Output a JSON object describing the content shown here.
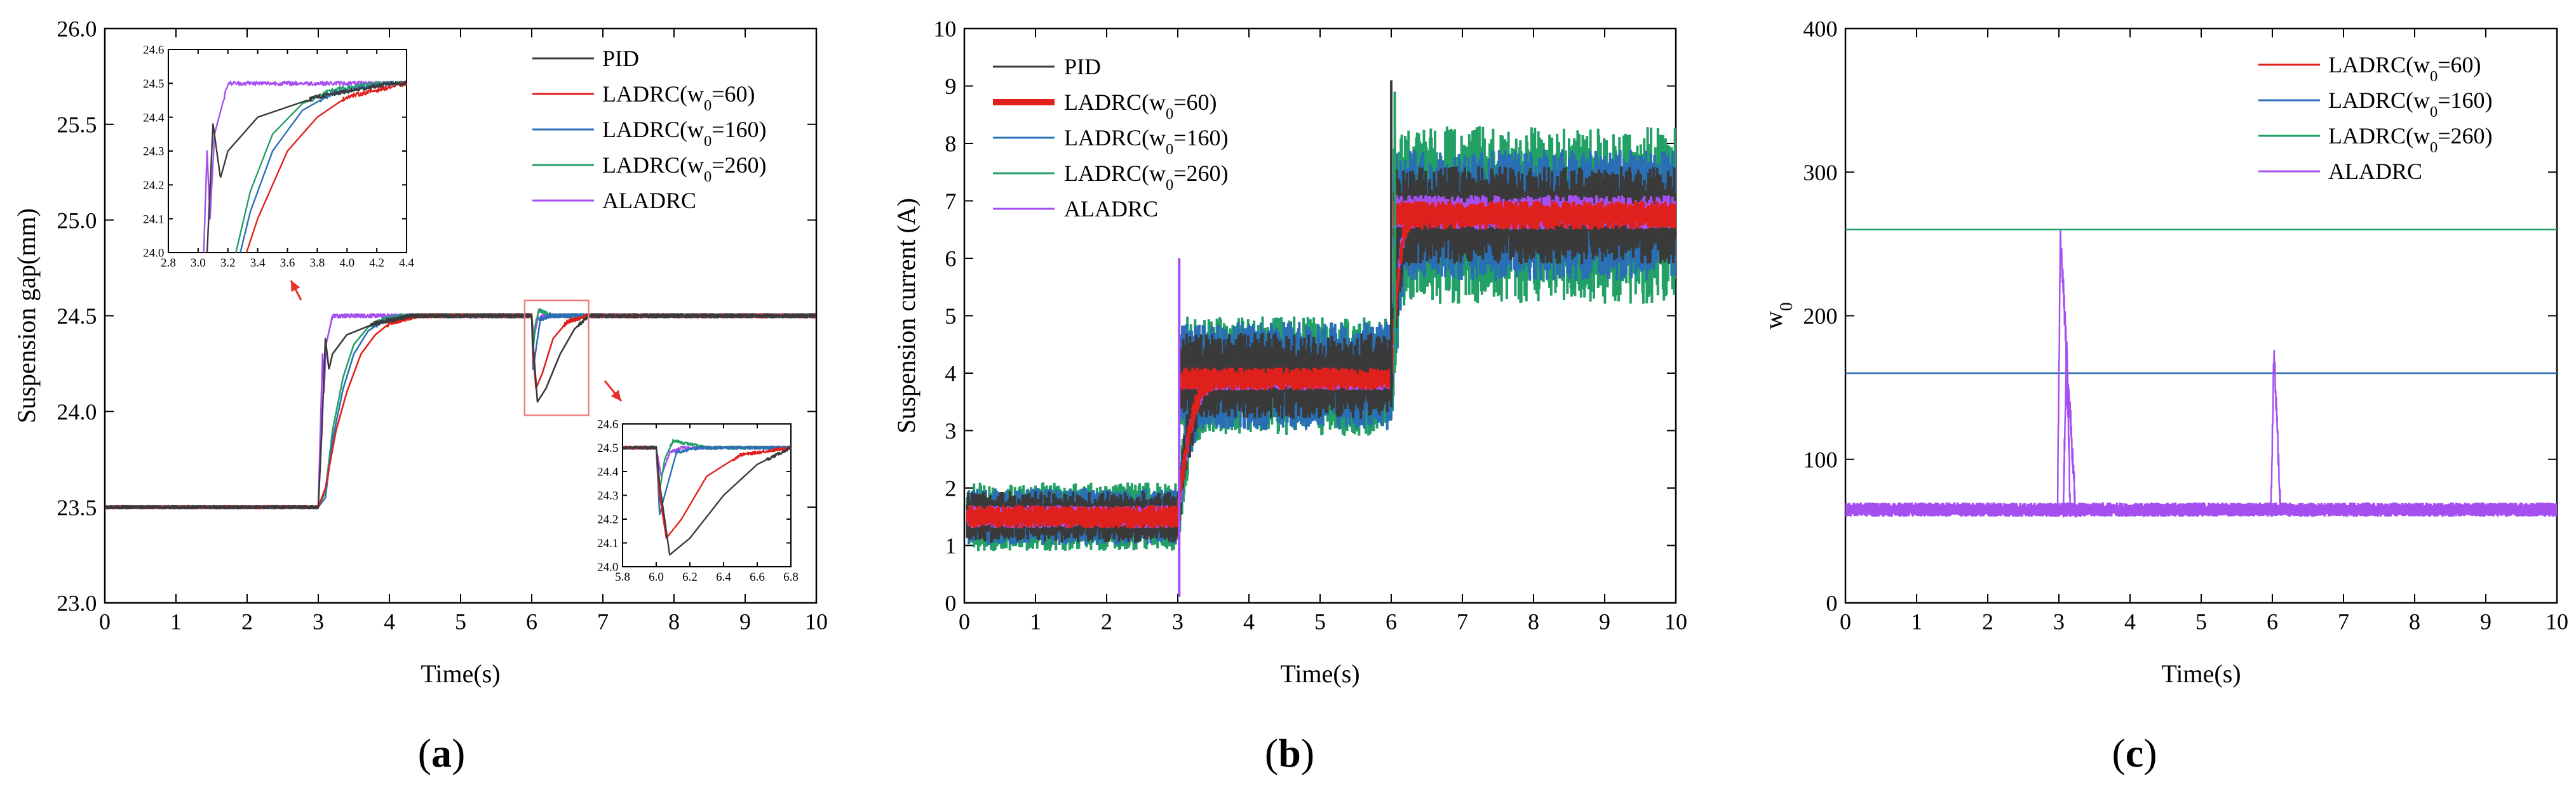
{
  "colors": {
    "PID": "#3a3a3a",
    "LADRC60": "#e0201c",
    "LADRC160": "#2a6fb5",
    "LADRC260": "#22a065",
    "ALADRC": "#a64ff0",
    "zoom_box": "#f08080",
    "arrow": "#e8302a"
  },
  "captions": [
    {
      "open": "(",
      "letter": "a",
      "close": ")"
    },
    {
      "open": "(",
      "letter": "b",
      "close": ")"
    },
    {
      "open": "(",
      "letter": "c",
      "close": ")"
    }
  ],
  "chart_data": [
    {
      "type": "line",
      "panel": "a",
      "xlabel": "Time(s)",
      "ylabel": "Suspension gap(mm)",
      "xlim": [
        0,
        10
      ],
      "ylim": [
        23.0,
        26.0
      ],
      "xticks": [
        "0",
        "1",
        "2",
        "3",
        "4",
        "5",
        "6",
        "7",
        "8",
        "9",
        "10"
      ],
      "yticks": [
        "23.0",
        "23.5",
        "24.0",
        "24.5",
        "25.0",
        "25.5",
        "26.0"
      ],
      "legend": {
        "placement": "top-right",
        "entries": [
          "PID",
          "LADRC(w0=60)",
          "LADRC(w0=160)",
          "LADRC(w0=260)",
          "ALADRC"
        ]
      },
      "series": [
        {
          "name": "PID",
          "key": "PID",
          "points": [
            [
              0,
              23.5
            ],
            [
              3.0,
              23.5
            ],
            [
              3.05,
              23.9
            ],
            [
              3.1,
              24.38
            ],
            [
              3.15,
              24.22
            ],
            [
              3.2,
              24.3
            ],
            [
              3.4,
              24.4
            ],
            [
              3.8,
              24.46
            ],
            [
              4.3,
              24.5
            ],
            [
              6.0,
              24.5
            ],
            [
              6.02,
              24.35
            ],
            [
              6.08,
              24.05
            ],
            [
              6.2,
              24.12
            ],
            [
              6.4,
              24.3
            ],
            [
              6.6,
              24.43
            ],
            [
              6.8,
              24.5
            ],
            [
              10,
              24.5
            ]
          ]
        },
        {
          "name": "LADRC(w0=60)",
          "key": "LADRC60",
          "points": [
            [
              0,
              23.5
            ],
            [
              3.0,
              23.5
            ],
            [
              3.1,
              23.6
            ],
            [
              3.25,
              23.9
            ],
            [
              3.4,
              24.1
            ],
            [
              3.6,
              24.3
            ],
            [
              3.8,
              24.4
            ],
            [
              4.0,
              24.46
            ],
            [
              4.4,
              24.5
            ],
            [
              6.0,
              24.5
            ],
            [
              6.02,
              24.3
            ],
            [
              6.06,
              24.12
            ],
            [
              6.15,
              24.2
            ],
            [
              6.3,
              24.38
            ],
            [
              6.5,
              24.47
            ],
            [
              6.8,
              24.5
            ],
            [
              10,
              24.5
            ]
          ]
        },
        {
          "name": "LADRC(w0=160)",
          "key": "LADRC160",
          "points": [
            [
              0,
              23.5
            ],
            [
              3.0,
              23.5
            ],
            [
              3.1,
              23.55
            ],
            [
              3.2,
              23.85
            ],
            [
              3.35,
              24.12
            ],
            [
              3.5,
              24.3
            ],
            [
              3.7,
              24.42
            ],
            [
              3.9,
              24.47
            ],
            [
              4.3,
              24.5
            ],
            [
              6.0,
              24.5
            ],
            [
              6.02,
              24.22
            ],
            [
              6.05,
              24.3
            ],
            [
              6.12,
              24.48
            ],
            [
              6.25,
              24.5
            ],
            [
              10,
              24.5
            ]
          ]
        },
        {
          "name": "LADRC(w0=260)",
          "key": "LADRC260",
          "points": [
            [
              0,
              23.5
            ],
            [
              3.0,
              23.5
            ],
            [
              3.1,
              23.58
            ],
            [
              3.2,
              23.9
            ],
            [
              3.35,
              24.18
            ],
            [
              3.5,
              24.35
            ],
            [
              3.7,
              24.44
            ],
            [
              3.9,
              24.48
            ],
            [
              4.2,
              24.5
            ],
            [
              6.0,
              24.5
            ],
            [
              6.02,
              24.32
            ],
            [
              6.05,
              24.45
            ],
            [
              6.1,
              24.53
            ],
            [
              6.3,
              24.5
            ],
            [
              10,
              24.5
            ]
          ]
        },
        {
          "name": "ALADRC",
          "key": "ALADRC",
          "points": [
            [
              0,
              23.5
            ],
            [
              3.0,
              23.5
            ],
            [
              3.03,
              23.9
            ],
            [
              3.06,
              24.3
            ],
            [
              3.08,
              24.1
            ],
            [
              3.11,
              24.35
            ],
            [
              3.2,
              24.5
            ],
            [
              6.0,
              24.5
            ],
            [
              6.03,
              24.38
            ],
            [
              6.08,
              24.48
            ],
            [
              6.15,
              24.5
            ],
            [
              10,
              24.5
            ]
          ]
        }
      ],
      "noise_amplitude": 0.01,
      "insets": [
        {
          "position": "upper-left",
          "xlim": [
            2.8,
            4.4
          ],
          "ylim": [
            24.0,
            24.6
          ],
          "xticks": [
            "2.8",
            "3.0",
            "3.2",
            "3.4",
            "3.6",
            "3.8",
            "4.0",
            "4.2",
            "4.4"
          ],
          "yticks": [
            "24.0",
            "24.1",
            "24.2",
            "24.3",
            "24.4",
            "24.5",
            "24.6"
          ]
        },
        {
          "position": "lower-right",
          "xlim": [
            5.8,
            6.8
          ],
          "ylim": [
            24.0,
            24.6
          ],
          "xticks": [
            "5.8",
            "6.0",
            "6.2",
            "6.4",
            "6.6",
            "6.8"
          ],
          "yticks": [
            "24.0",
            "24.1",
            "24.2",
            "24.3",
            "24.4",
            "24.5",
            "24.6"
          ]
        }
      ],
      "zoom_region": {
        "x": [
          5.9,
          6.8
        ],
        "y": [
          23.98,
          24.58
        ]
      }
    },
    {
      "type": "line",
      "panel": "b",
      "xlabel": "Time(s)",
      "ylabel": "Suspension current (A)",
      "xlim": [
        0,
        10
      ],
      "ylim": [
        0,
        10
      ],
      "xticks": [
        "0",
        "1",
        "2",
        "3",
        "4",
        "5",
        "6",
        "7",
        "8",
        "9",
        "10"
      ],
      "yticks": [
        "0",
        "1",
        "2",
        "3",
        "4",
        "5",
        "6",
        "7",
        "8",
        "9",
        "10"
      ],
      "legend": {
        "placement": "top-left",
        "entries": [
          "PID",
          "LADRC(w0=60)",
          "LADRC(w0=160)",
          "LADRC(w0=260)",
          "ALADRC"
        ]
      },
      "bands": [
        {
          "name": "LADRC(w0=260)",
          "key": "LADRC260",
          "segments": [
            [
              0,
              3,
              0.9,
              2.1
            ],
            [
              3,
              6,
              2.9,
              5.0
            ],
            [
              6,
              10,
              5.2,
              8.3
            ]
          ]
        },
        {
          "name": "LADRC(w0=160)",
          "key": "LADRC160",
          "segments": [
            [
              0,
              3,
              1.0,
              2.0
            ],
            [
              3,
              6,
              3.0,
              4.9
            ],
            [
              6,
              10,
              5.6,
              7.9
            ]
          ]
        },
        {
          "name": "PID",
          "key": "PID",
          "segments": [
            [
              0,
              3,
              1.05,
              1.95
            ],
            [
              3,
              6,
              3.2,
              4.7
            ],
            [
              6,
              10,
              5.9,
              7.6
            ]
          ]
        },
        {
          "name": "ALADRC",
          "key": "ALADRC",
          "segments": [
            [
              0,
              3,
              1.3,
              1.7
            ],
            [
              3,
              6,
              3.7,
              4.0
            ],
            [
              6,
              10,
              6.5,
              7.1
            ]
          ]
        },
        {
          "name": "LADRC(w0=60)",
          "key": "LADRC60",
          "segments": [
            [
              0,
              3,
              1.3,
              1.7
            ],
            [
              3,
              6,
              3.7,
              4.1
            ],
            [
              6,
              10,
              6.5,
              7.0
            ]
          ]
        }
      ],
      "spikes": [
        {
          "key": "ALADRC",
          "x": 3.02,
          "low": 0.1,
          "high": 6.0
        },
        {
          "key": "PID",
          "x": 6.0,
          "low": 3.6,
          "high": 9.1
        },
        {
          "key": "LADRC260",
          "x": 6.05,
          "low": 4.0,
          "high": 8.9
        }
      ]
    },
    {
      "type": "line",
      "panel": "c",
      "xlabel": "Time(s)",
      "ylabel": "w0",
      "xlim": [
        0,
        10
      ],
      "ylim": [
        0,
        400
      ],
      "xticks": [
        "0",
        "1",
        "2",
        "3",
        "4",
        "5",
        "6",
        "7",
        "8",
        "9",
        "10"
      ],
      "yticks": [
        "0",
        "100",
        "200",
        "300",
        "400"
      ],
      "legend": {
        "placement": "top-right",
        "entries": [
          "LADRC(w0=60)",
          "LADRC(w0=160)",
          "LADRC(w0=260)",
          "ALADRC"
        ]
      },
      "series": [
        {
          "name": "LADRC(w0=60)",
          "key": "LADRC60",
          "constant": 60
        },
        {
          "name": "LADRC(w0=160)",
          "key": "LADRC160",
          "constant": 160
        },
        {
          "name": "LADRC(w0=260)",
          "key": "LADRC260",
          "constant": 260
        },
        {
          "name": "ALADRC",
          "key": "ALADRC",
          "band": [
            60,
            70
          ],
          "peaks": [
            {
              "x": 3.02,
              "value": 255
            },
            {
              "x": 3.12,
              "value": 185
            },
            {
              "x": 6.02,
              "value": 175
            }
          ]
        }
      ]
    }
  ]
}
